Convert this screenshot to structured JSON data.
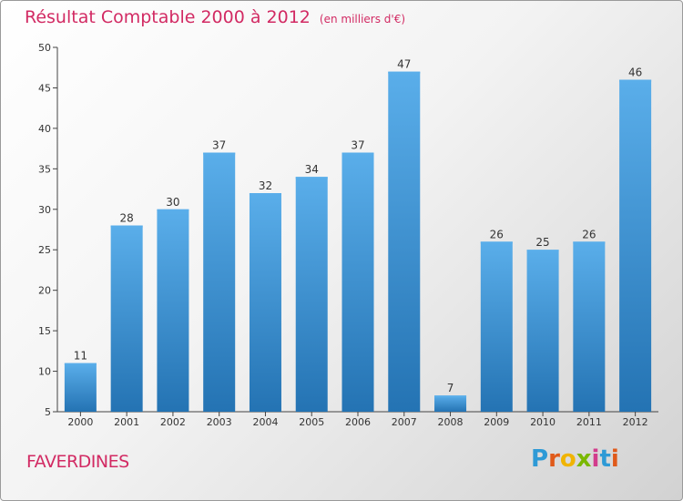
{
  "header": {
    "title": "Résultat Comptable 2000 à 2012",
    "subtitle": "(en milliers d'€)"
  },
  "footer": {
    "commune": "FAVERDINES",
    "logo_letters": [
      "P",
      "r",
      "o",
      "x",
      "i",
      "t",
      "i"
    ],
    "logo_colors": [
      "#2e9ad6",
      "#e05a1a",
      "#f0b400",
      "#7ab800",
      "#d23c8c",
      "#2e9ad6",
      "#e05a1a"
    ]
  },
  "colors": {
    "bar": "#3f97d9",
    "bar_light": "#5aaeea",
    "bar_dark": "#2473b3",
    "title": "#d22a63"
  },
  "chart_data": {
    "type": "bar",
    "title": "Résultat Comptable 2000 à 2012",
    "subtitle": "(en milliers d'€)",
    "categories": [
      "2000",
      "2001",
      "2002",
      "2003",
      "2004",
      "2005",
      "2006",
      "2007",
      "2008",
      "2009",
      "2010",
      "2011",
      "2012"
    ],
    "values": [
      11,
      28,
      30,
      37,
      32,
      34,
      37,
      47,
      7,
      26,
      25,
      26,
      46
    ],
    "ylim": [
      5,
      50
    ],
    "yticks": [
      5,
      10,
      15,
      20,
      25,
      30,
      35,
      40,
      45,
      50
    ],
    "grid": false,
    "legend": "none"
  }
}
